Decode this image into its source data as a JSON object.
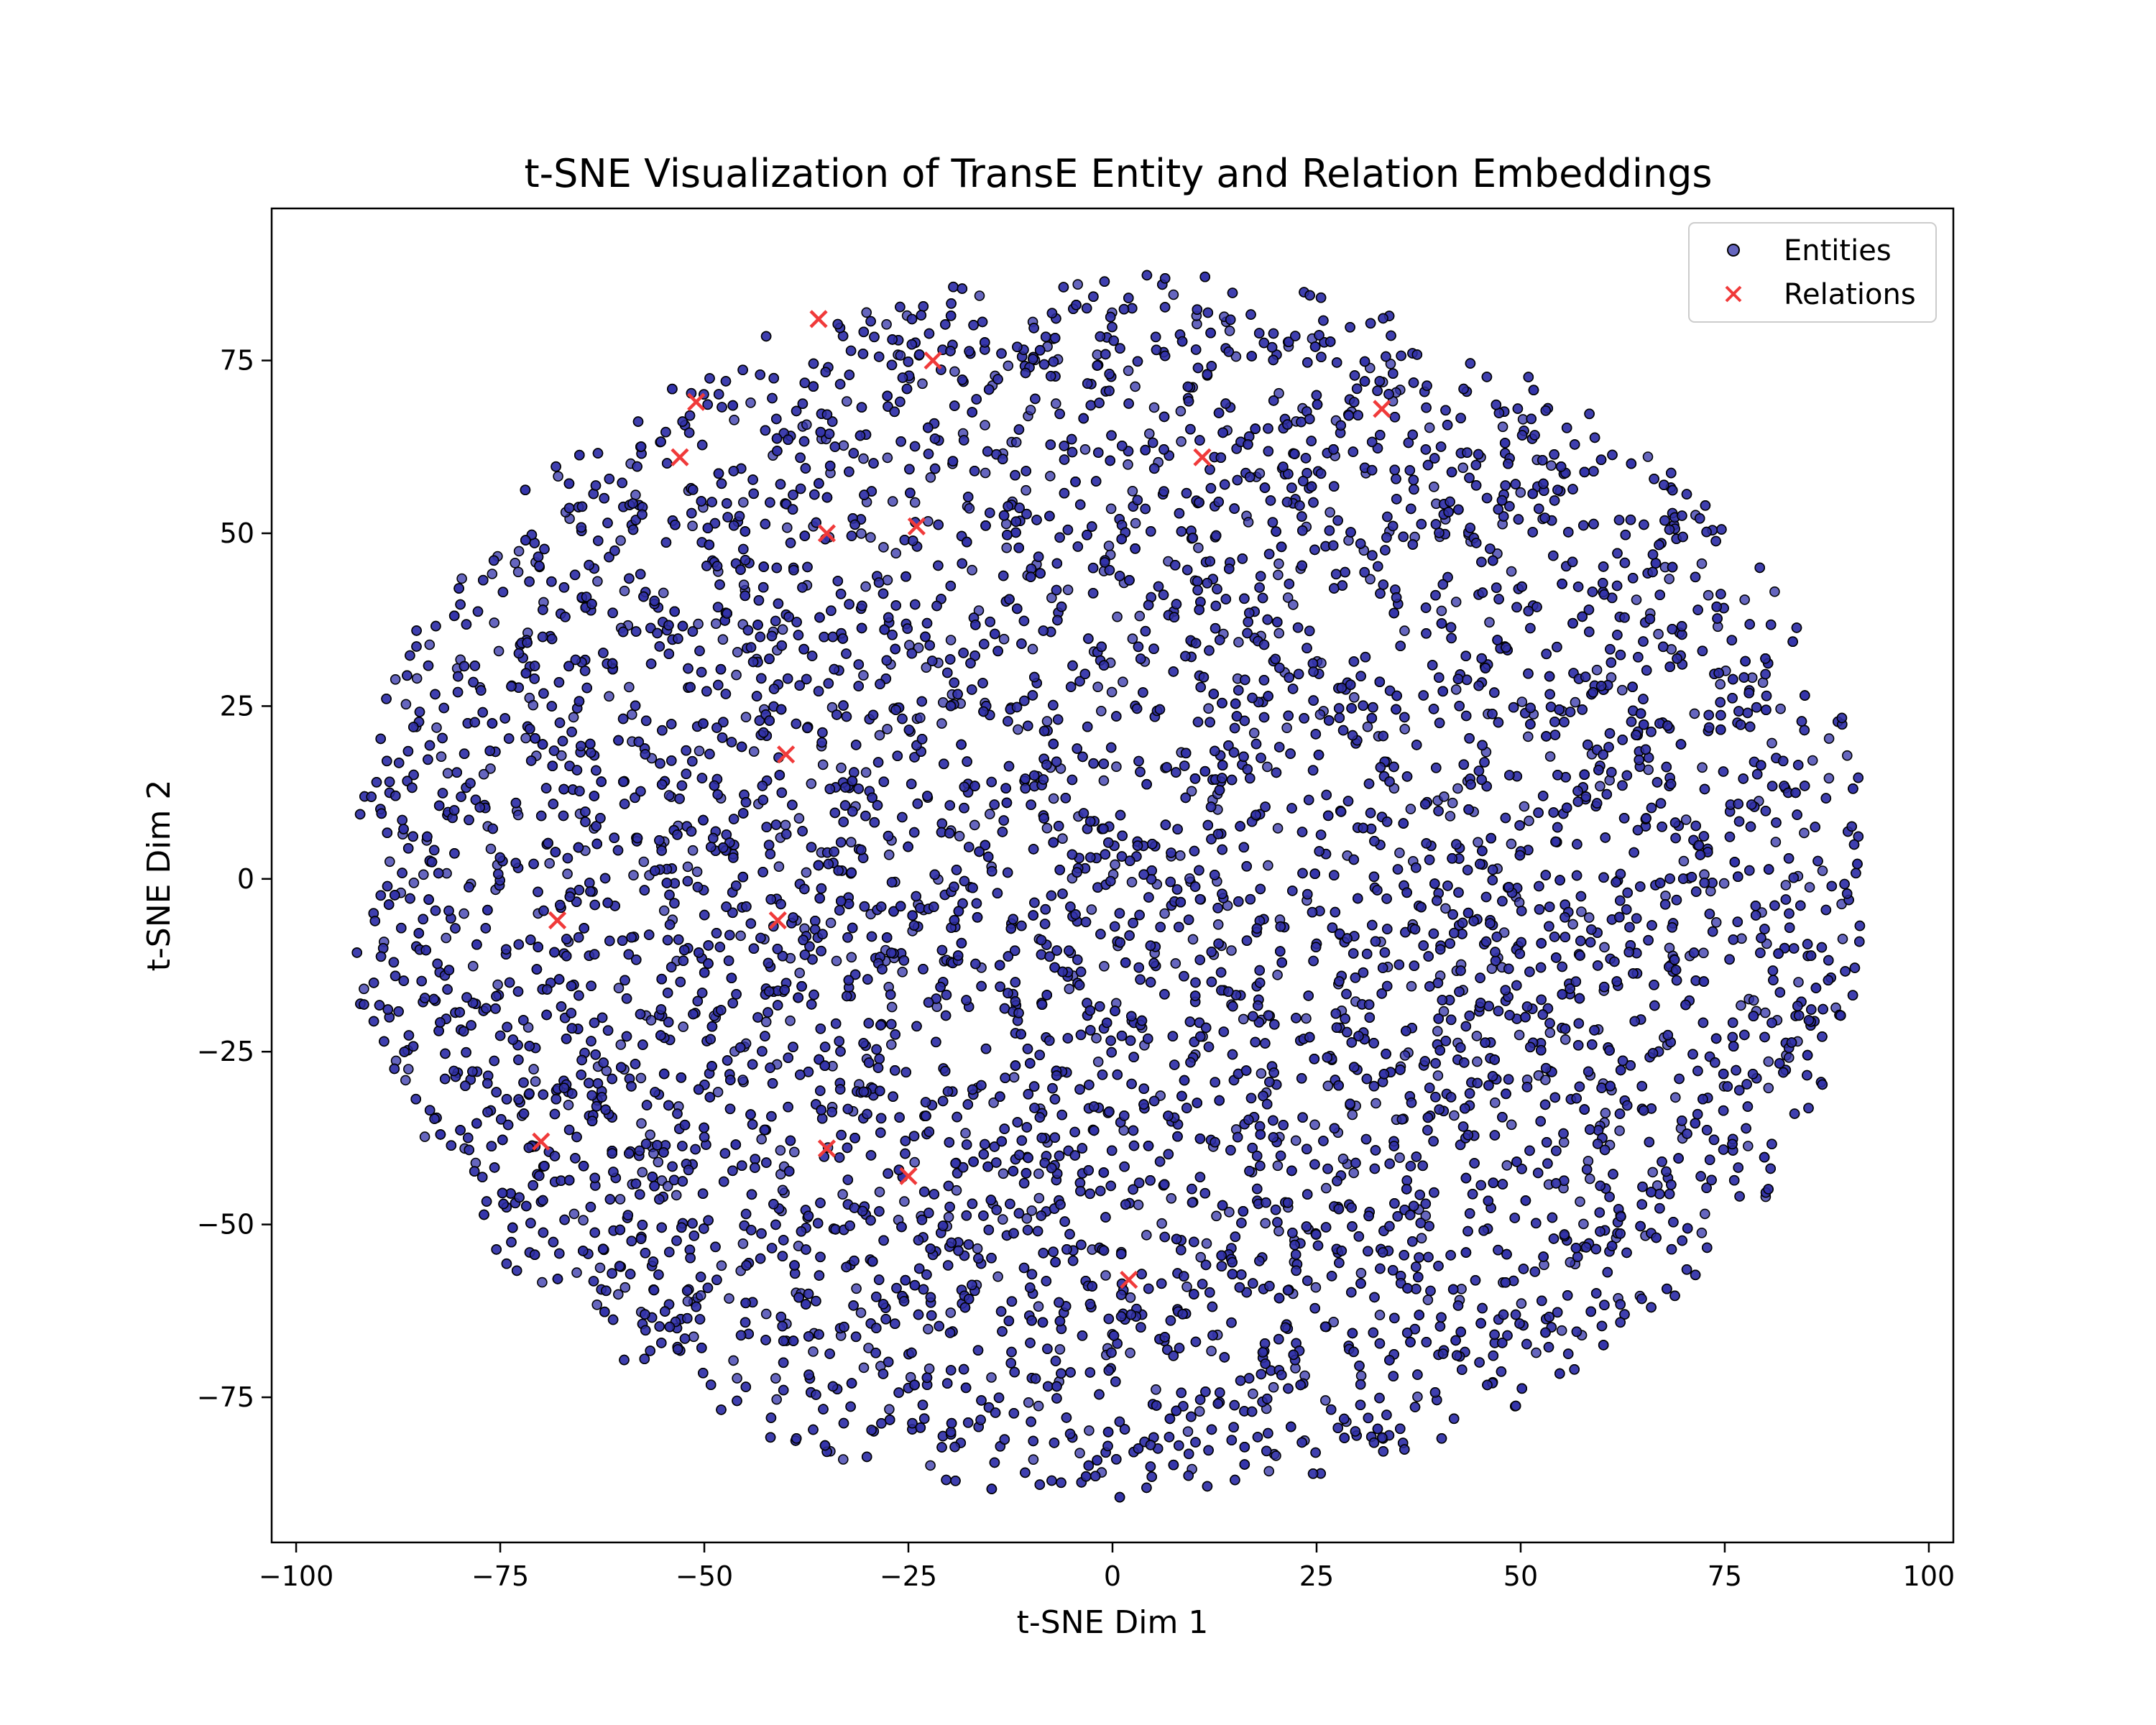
{
  "chart_data": {
    "type": "scatter",
    "title": "t-SNE Visualization of TransE Entity and Relation Embeddings",
    "xlabel": "t-SNE Dim 1",
    "ylabel": "t-SNE Dim 2",
    "xlim": [
      -103,
      103
    ],
    "ylim": [
      -96,
      97
    ],
    "xticks": [
      -100,
      -75,
      -50,
      -25,
      0,
      25,
      50,
      75,
      100
    ],
    "xtick_labels": [
      "−100",
      "−75",
      "−50",
      "−25",
      "0",
      "25",
      "50",
      "75",
      "100"
    ],
    "yticks": [
      -75,
      -50,
      -25,
      0,
      25,
      50,
      75
    ],
    "ytick_labels": [
      "−75",
      "−50",
      "−25",
      "0",
      "25",
      "50",
      "75"
    ],
    "grid": false,
    "legend_position": "upper right",
    "series": [
      {
        "name": "Entities",
        "marker": "circle",
        "color": "#3333aa",
        "edge_color": "#000000",
        "distribution": {
          "shape": "ellipse",
          "x_range": [
            -94,
            93
          ],
          "y_range": [
            -90,
            88
          ],
          "approx_count": 9000
        }
      },
      {
        "name": "Relations",
        "marker": "x",
        "color": "#f03a3a",
        "points": [
          {
            "x": -36,
            "y": 81
          },
          {
            "x": -22,
            "y": 75
          },
          {
            "x": -51,
            "y": 69
          },
          {
            "x": -53,
            "y": 61
          },
          {
            "x": 11,
            "y": 61
          },
          {
            "x": 33,
            "y": 68
          },
          {
            "x": -24,
            "y": 51
          },
          {
            "x": -35,
            "y": 50
          },
          {
            "x": -40,
            "y": 18
          },
          {
            "x": -68,
            "y": -6
          },
          {
            "x": -41,
            "y": -6
          },
          {
            "x": -70,
            "y": -38
          },
          {
            "x": -35,
            "y": -39
          },
          {
            "x": -25,
            "y": -43
          },
          {
            "x": 2,
            "y": -58
          }
        ]
      }
    ]
  }
}
